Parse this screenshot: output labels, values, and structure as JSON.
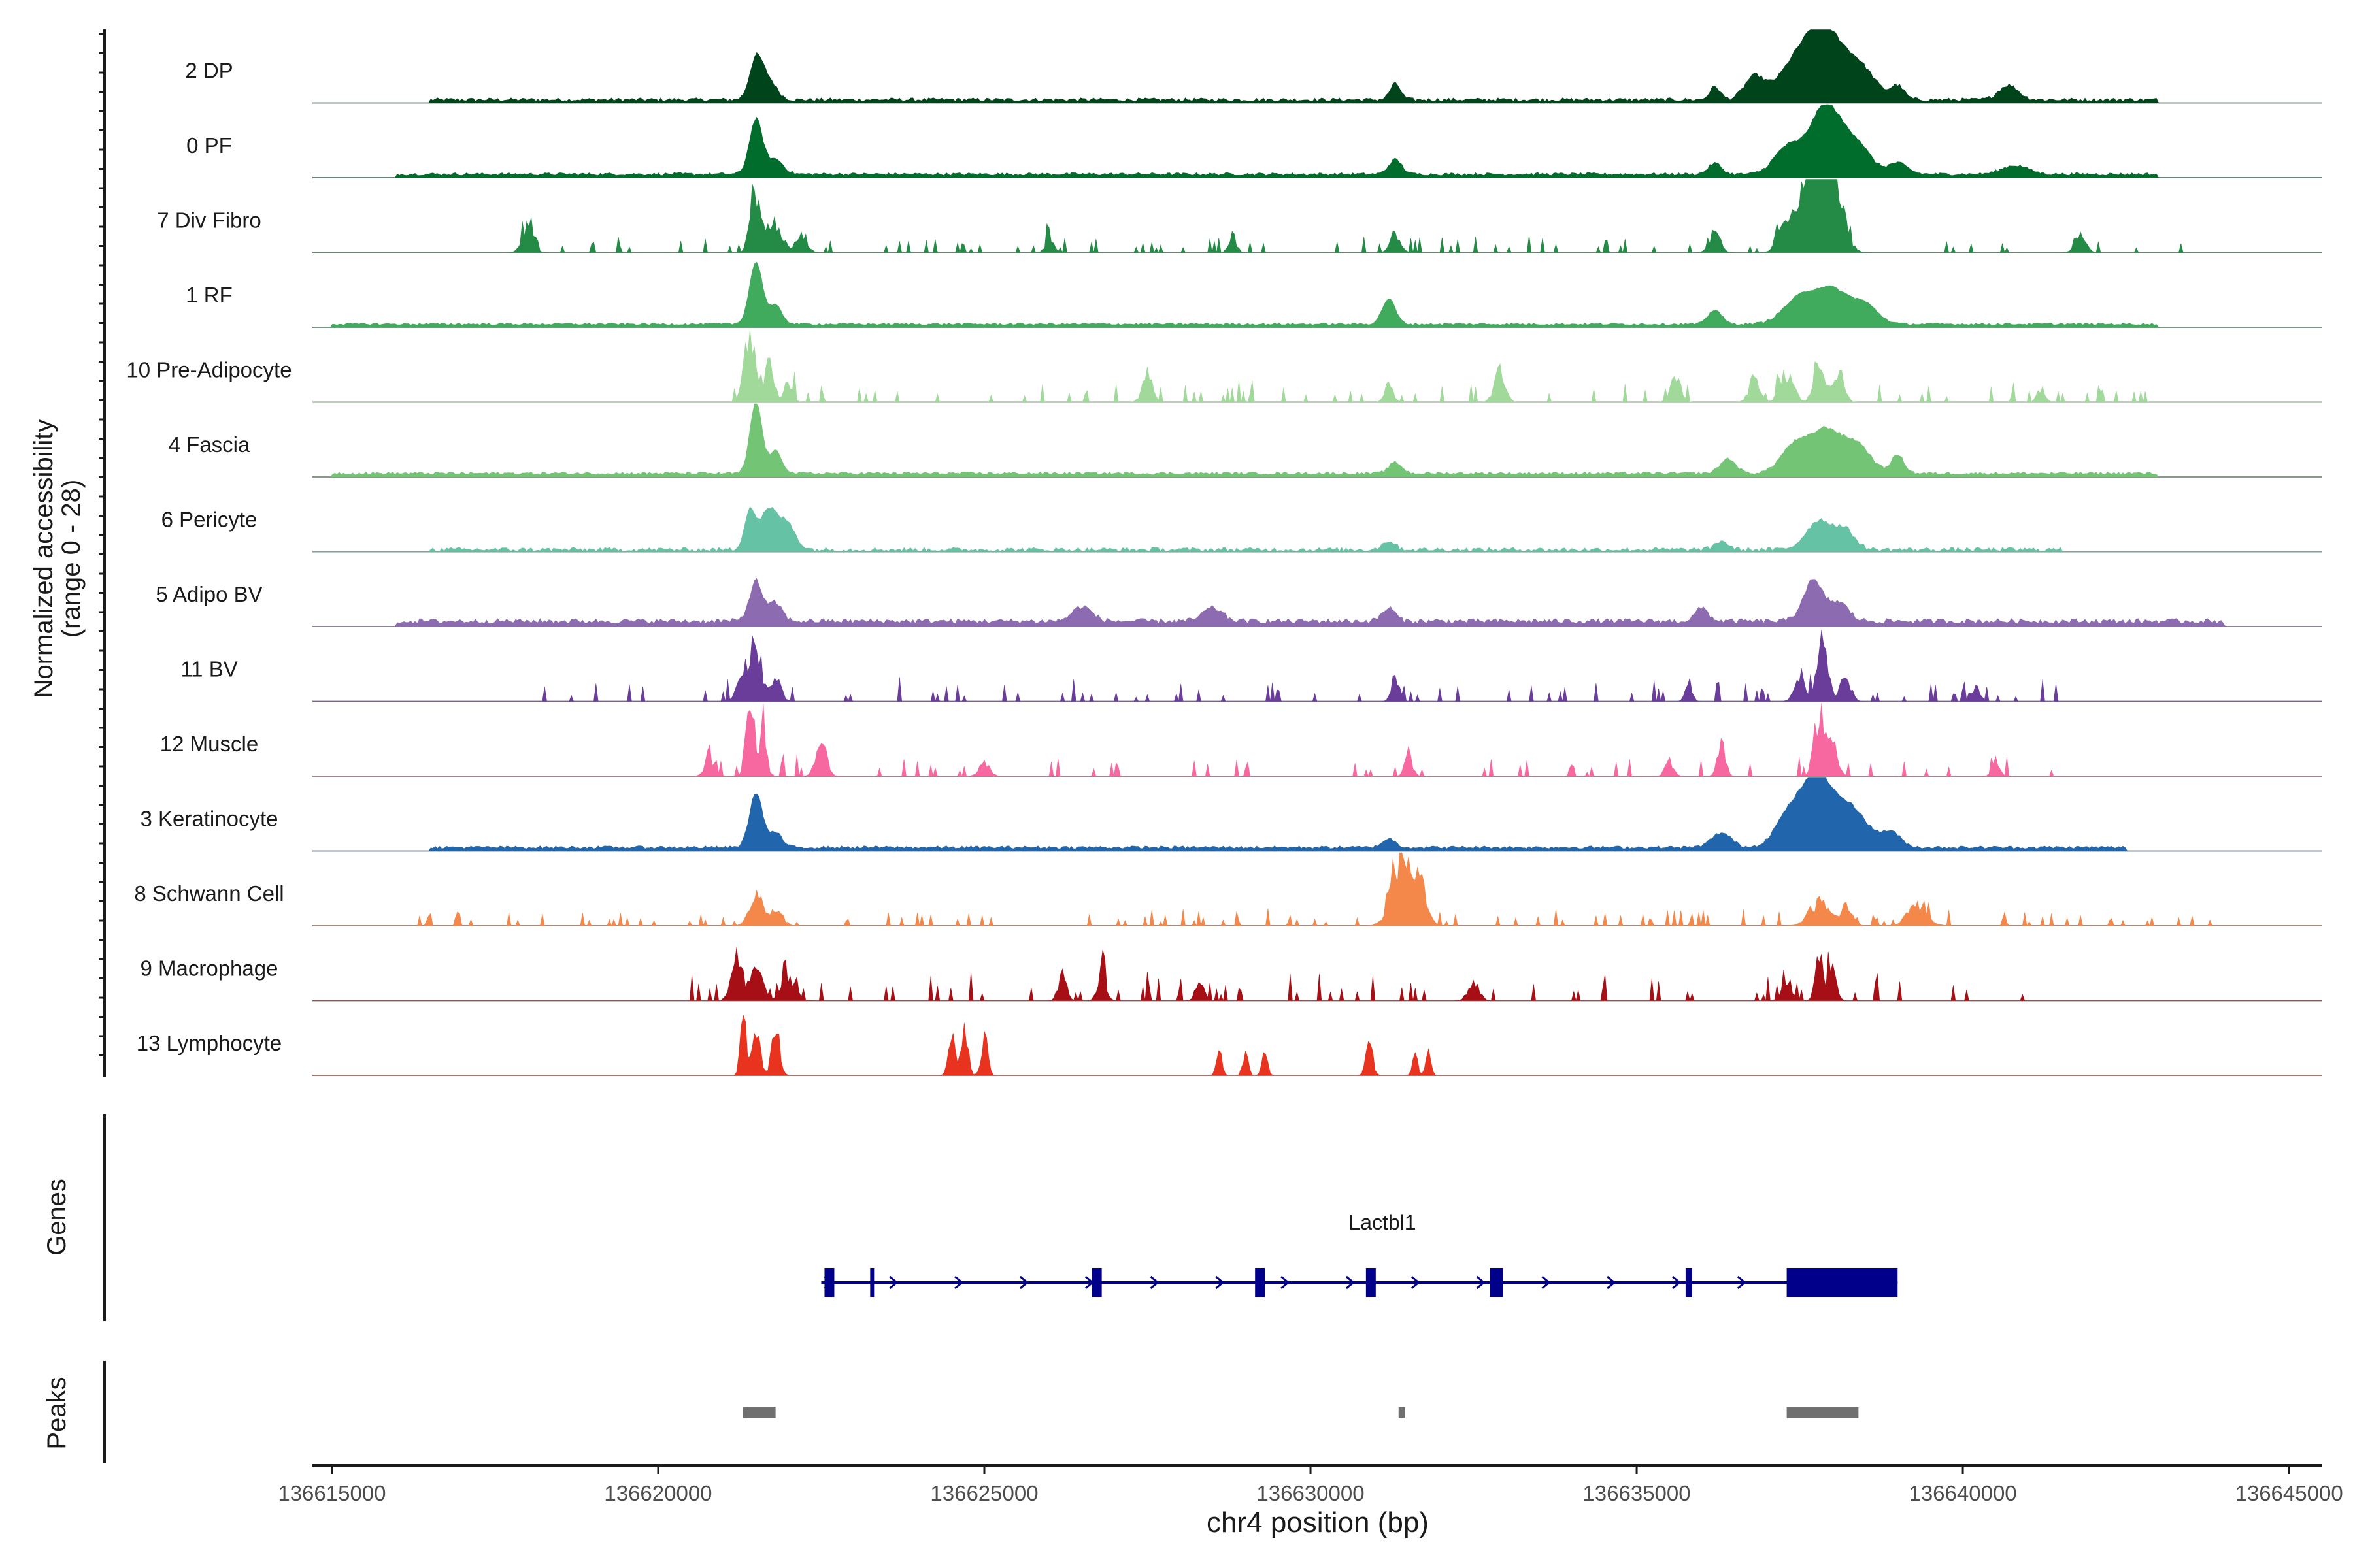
{
  "chart_data": {
    "type": "area",
    "title": "",
    "chromosome": "chr4",
    "xlabel": "chr4 position (bp)",
    "ylabel": "Normalized accessibility",
    "ylabel_range": "(range 0 - 28)",
    "xlim": [
      136614700,
      136645500
    ],
    "ylim": [
      0,
      28
    ],
    "x_ticks": [
      136615000,
      136620000,
      136625000,
      136630000,
      136635000,
      136640000,
      136645000
    ],
    "x_tick_labels": [
      "136615000",
      "136620000",
      "136625000",
      "136630000",
      "136635000",
      "136640000",
      "136645000"
    ],
    "series": [
      {
        "name": "2 DP",
        "color": "#00441b",
        "baseline": 0.02,
        "noise": 0.05,
        "noise_range": [
          136616500,
          136643000
        ],
        "peaks": [
          [
            136621500,
            0.55,
            100
          ],
          [
            136621700,
            0.25,
            120
          ],
          [
            136631300,
            0.22,
            80
          ],
          [
            136636200,
            0.18,
            80
          ],
          [
            136636800,
            0.3,
            150
          ],
          [
            136637500,
            0.55,
            300
          ],
          [
            136637900,
            0.75,
            250
          ],
          [
            136638400,
            0.45,
            250
          ],
          [
            136639000,
            0.18,
            100
          ],
          [
            136640700,
            0.2,
            150
          ]
        ]
      },
      {
        "name": "0 PF",
        "color": "#006d2c",
        "baseline": 0.03,
        "noise": 0.04,
        "noise_range": [
          136616000,
          136643000
        ],
        "peaks": [
          [
            136621500,
            0.75,
            100
          ],
          [
            136621800,
            0.2,
            120
          ],
          [
            136631300,
            0.2,
            100
          ],
          [
            136636200,
            0.15,
            100
          ],
          [
            136637300,
            0.35,
            200
          ],
          [
            136637900,
            0.95,
            250
          ],
          [
            136638400,
            0.35,
            200
          ],
          [
            136639000,
            0.15,
            150
          ],
          [
            136640800,
            0.12,
            200
          ]
        ]
      },
      {
        "name": "7 Div Fibro",
        "color": "#238b45",
        "baseline": 0.0,
        "noise": 0.15,
        "noise_range": [
          136617800,
          136643600
        ],
        "sparse": true,
        "peaks": [
          [
            136618000,
            0.45,
            80
          ],
          [
            136621500,
            1.0,
            80
          ],
          [
            136621800,
            0.45,
            100
          ],
          [
            136622200,
            0.3,
            80
          ],
          [
            136626000,
            0.2,
            60
          ],
          [
            136628800,
            0.25,
            60
          ],
          [
            136631300,
            0.3,
            80
          ],
          [
            136636200,
            0.3,
            80
          ],
          [
            136637300,
            0.5,
            120
          ],
          [
            136637750,
            2.2,
            150
          ],
          [
            136638000,
            1.2,
            150
          ],
          [
            136641800,
            0.25,
            80
          ]
        ]
      },
      {
        "name": "1 RF",
        "color": "#41ab5d",
        "baseline": 0.03,
        "noise": 0.03,
        "noise_range": [
          136615000,
          136643000
        ],
        "peaks": [
          [
            136621500,
            0.85,
            100
          ],
          [
            136621800,
            0.25,
            100
          ],
          [
            136631200,
            0.35,
            100
          ],
          [
            136636200,
            0.2,
            100
          ],
          [
            136637500,
            0.35,
            250
          ],
          [
            136638000,
            0.45,
            250
          ],
          [
            136638500,
            0.25,
            200
          ]
        ]
      },
      {
        "name": "10 Pre-Adipocyte",
        "color": "#a1d99b",
        "baseline": 0.0,
        "noise": 0.2,
        "noise_range": [
          136621000,
          136643000
        ],
        "sparse": true,
        "peaks": [
          [
            136621400,
            1.0,
            80
          ],
          [
            136621700,
            0.55,
            80
          ],
          [
            136622000,
            0.3,
            60
          ],
          [
            136627500,
            0.35,
            80
          ],
          [
            136631200,
            0.35,
            60
          ],
          [
            136632900,
            0.5,
            80
          ],
          [
            136635600,
            0.35,
            80
          ],
          [
            136636800,
            0.35,
            80
          ],
          [
            136637300,
            0.45,
            100
          ],
          [
            136637800,
            0.7,
            80
          ],
          [
            136638100,
            0.45,
            80
          ],
          [
            136641200,
            0.2,
            60
          ]
        ]
      },
      {
        "name": "4 Fascia",
        "color": "#74c476",
        "baseline": 0.03,
        "noise": 0.04,
        "noise_range": [
          136615000,
          136643000
        ],
        "peaks": [
          [
            136621500,
            1.0,
            90
          ],
          [
            136621800,
            0.3,
            100
          ],
          [
            136631300,
            0.15,
            100
          ],
          [
            136636400,
            0.2,
            120
          ],
          [
            136637400,
            0.35,
            200
          ],
          [
            136637900,
            0.6,
            250
          ],
          [
            136638400,
            0.35,
            200
          ],
          [
            136639000,
            0.25,
            100
          ]
        ]
      },
      {
        "name": "6 Pericyte",
        "color": "#66c2a4",
        "baseline": 0.0,
        "noise": 0.06,
        "noise_range": [
          136616500,
          136641500
        ],
        "peaks": [
          [
            136621400,
            0.5,
            80
          ],
          [
            136621700,
            0.55,
            150
          ],
          [
            136622000,
            0.3,
            120
          ],
          [
            136631200,
            0.12,
            100
          ],
          [
            136636300,
            0.12,
            100
          ],
          [
            136637800,
            0.4,
            200
          ],
          [
            136638200,
            0.25,
            150
          ]
        ]
      },
      {
        "name": "5 Adipo BV",
        "color": "#8c6bb1",
        "baseline": 0.04,
        "noise": 0.07,
        "noise_range": [
          136616000,
          136644000
        ],
        "peaks": [
          [
            136621500,
            0.55,
            100
          ],
          [
            136621800,
            0.25,
            100
          ],
          [
            136626500,
            0.2,
            150
          ],
          [
            136628500,
            0.18,
            150
          ],
          [
            136631200,
            0.18,
            100
          ],
          [
            136636000,
            0.18,
            100
          ],
          [
            136637700,
            0.55,
            150
          ],
          [
            136638100,
            0.25,
            150
          ]
        ]
      },
      {
        "name": "11 BV",
        "color": "#6a3d9a",
        "baseline": 0.0,
        "noise": 0.2,
        "noise_range": [
          136618000,
          136642000
        ],
        "sparse": true,
        "peaks": [
          [
            136621300,
            0.5,
            80
          ],
          [
            136621500,
            0.85,
            80
          ],
          [
            136621800,
            0.35,
            80
          ],
          [
            136631300,
            0.35,
            60
          ],
          [
            136635800,
            0.3,
            50
          ],
          [
            136637500,
            0.4,
            80
          ],
          [
            136637850,
            0.95,
            80
          ],
          [
            136638200,
            0.35,
            80
          ],
          [
            136640200,
            0.25,
            60
          ]
        ]
      },
      {
        "name": "12 Muscle",
        "color": "#f768a1",
        "baseline": 0.0,
        "noise": 0.2,
        "noise_range": [
          136620500,
          136641500
        ],
        "sparse": true,
        "peaks": [
          [
            136620800,
            0.2,
            80
          ],
          [
            136621400,
            1.0,
            60
          ],
          [
            136621600,
            0.6,
            60
          ],
          [
            136622500,
            0.5,
            80
          ],
          [
            136625000,
            0.2,
            80
          ],
          [
            136631500,
            0.3,
            60
          ],
          [
            136635500,
            0.25,
            60
          ],
          [
            136636300,
            0.45,
            60
          ],
          [
            136637800,
            0.95,
            80
          ],
          [
            136638000,
            0.5,
            80
          ],
          [
            136640500,
            0.2,
            60
          ]
        ]
      },
      {
        "name": "3 Keratinocyte",
        "color": "#2166ac",
        "baseline": 0.03,
        "noise": 0.04,
        "noise_range": [
          136616500,
          136642500
        ],
        "peaks": [
          [
            136621500,
            0.75,
            100
          ],
          [
            136621800,
            0.2,
            100
          ],
          [
            136631200,
            0.12,
            100
          ],
          [
            136636300,
            0.2,
            150
          ],
          [
            136637300,
            0.35,
            200
          ],
          [
            136637750,
            0.95,
            250
          ],
          [
            136638300,
            0.5,
            250
          ],
          [
            136638900,
            0.2,
            150
          ]
        ]
      },
      {
        "name": "8 Schwann Cell",
        "color": "#f4874a",
        "baseline": 0.0,
        "noise": 0.15,
        "noise_range": [
          136616000,
          136644000
        ],
        "sparse": true,
        "peaks": [
          [
            136621500,
            0.45,
            100
          ],
          [
            136621800,
            0.25,
            100
          ],
          [
            136631400,
            1.0,
            150
          ],
          [
            136631700,
            0.55,
            100
          ],
          [
            136637800,
            0.35,
            150
          ],
          [
            136638200,
            0.25,
            100
          ],
          [
            136639300,
            0.3,
            150
          ]
        ]
      },
      {
        "name": "9 Macrophage",
        "color": "#a50f15",
        "baseline": 0.0,
        "noise": 0.25,
        "noise_range": [
          136620200,
          136641000
        ],
        "sparse": true,
        "peaks": [
          [
            136621200,
            0.7,
            80
          ],
          [
            136621500,
            0.45,
            100
          ],
          [
            136622000,
            0.35,
            100
          ],
          [
            136626200,
            0.45,
            60
          ],
          [
            136626800,
            0.5,
            60
          ],
          [
            136628300,
            0.3,
            60
          ],
          [
            136632500,
            0.3,
            80
          ],
          [
            136637300,
            0.3,
            80
          ],
          [
            136637800,
            0.75,
            60
          ],
          [
            136638000,
            0.4,
            60
          ]
        ]
      },
      {
        "name": "13 Lymphocyte",
        "color": "#e8331f",
        "baseline": 0.0,
        "noise": 0.0,
        "noise_range": [
          136621000,
          136632000
        ],
        "sparse": true,
        "peaks": [
          [
            136621300,
            1.0,
            40
          ],
          [
            136621500,
            0.7,
            60
          ],
          [
            136621800,
            0.7,
            60
          ],
          [
            136624500,
            0.55,
            50
          ],
          [
            136624700,
            0.7,
            50
          ],
          [
            136625000,
            0.55,
            50
          ],
          [
            136628600,
            0.35,
            40
          ],
          [
            136629000,
            0.35,
            40
          ],
          [
            136629300,
            0.35,
            40
          ],
          [
            136630900,
            0.55,
            50
          ],
          [
            136631600,
            0.35,
            40
          ],
          [
            136631800,
            0.35,
            40
          ]
        ]
      }
    ],
    "genes_label": "Genes",
    "gene": {
      "name": "Lactbl1",
      "color": "#00008b",
      "strand": "+",
      "start": 136622500,
      "end": 136639000,
      "exons": [
        [
          136622550,
          136622700
        ],
        [
          136623250,
          136623300
        ],
        [
          136626650,
          136626800
        ],
        [
          136629150,
          136629300
        ],
        [
          136630850,
          136631000
        ],
        [
          136632750,
          136632950
        ],
        [
          136635750,
          136635850
        ],
        [
          136637300,
          136639000
        ]
      ]
    },
    "peaks_label": "Peaks",
    "peaks_color": "#707070",
    "peak_regions": [
      [
        136621300,
        136621800
      ],
      [
        136631350,
        136631450
      ],
      [
        136637300,
        136638400
      ]
    ]
  }
}
